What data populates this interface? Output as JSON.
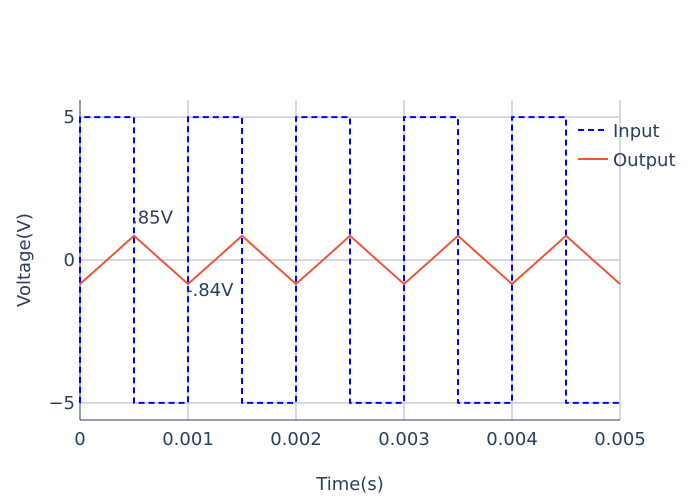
{
  "chart_data": {
    "type": "line",
    "title": "",
    "xlabel": "Time(s)",
    "ylabel": "Voltage(V)",
    "xlim": [
      0,
      0.005
    ],
    "ylim": [
      -5.6,
      5.6
    ],
    "xticks": [
      0,
      0.001,
      0.002,
      0.003,
      0.004,
      0.005
    ],
    "xtick_labels": [
      "0",
      "0.001",
      "0.002",
      "0.003",
      "0.004",
      "0.005"
    ],
    "yticks": [
      -5,
      0,
      5
    ],
    "ytick_labels": [
      "−5",
      "0",
      "5"
    ],
    "grid": true,
    "legend_position": "top-right",
    "series": [
      {
        "name": "Input",
        "style": "dashed",
        "color": "#0000ff",
        "x": [
          0,
          0,
          0.0005,
          0.0005,
          0.001,
          0.001,
          0.0015,
          0.0015,
          0.002,
          0.002,
          0.0025,
          0.0025,
          0.003,
          0.003,
          0.0035,
          0.0035,
          0.004,
          0.004,
          0.0045,
          0.0045,
          0.005
        ],
        "values": [
          -5,
          5,
          5,
          -5,
          -5,
          5,
          5,
          -5,
          -5,
          5,
          5,
          -5,
          -5,
          5,
          5,
          -5,
          -5,
          5,
          5,
          -5,
          -5
        ]
      },
      {
        "name": "Output",
        "style": "solid",
        "color": "#ef553b",
        "x": [
          0,
          0.00025,
          0.0005,
          0.00075,
          0.001,
          0.00125,
          0.0015,
          0.00175,
          0.002,
          0.00225,
          0.0025,
          0.00275,
          0.003,
          0.00325,
          0.0035,
          0.00375,
          0.004,
          0.00425,
          0.0045,
          0.00475,
          0.005
        ],
        "values": [
          -0.84,
          0,
          0.85,
          0,
          -0.84,
          0,
          0.85,
          0,
          -0.84,
          0,
          0.85,
          0,
          -0.84,
          0,
          0.85,
          0,
          -0.84,
          0,
          0.85,
          0,
          -0.84
        ]
      }
    ],
    "annotations": [
      {
        "text": ".85V",
        "x": 0.0005,
        "y": 0.85
      },
      {
        "text": "-.84V",
        "x": 0.001,
        "y": -0.84
      }
    ]
  }
}
